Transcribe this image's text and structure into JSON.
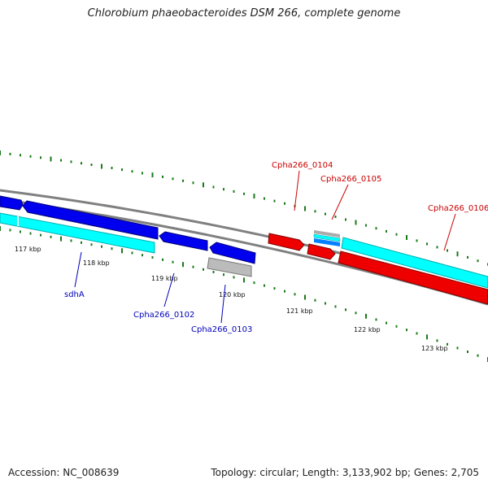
{
  "title": "Chlorobium phaeobacteroides DSM 266, complete genome",
  "footer": {
    "accession": "Accession: NC_008639",
    "summary": "Topology: circular; Length: 3,133,902 bp; Genes: 2,705"
  },
  "colors": {
    "forward_cds": "#0000ee",
    "reverse_cds": "#ee0000",
    "rna": "#aaaaaa",
    "cyan_track": "#00ffff",
    "backbone": "#808080",
    "tick": "#1a7a1a",
    "label_forward": "#0000bb",
    "label_reverse": "#cc0000"
  },
  "scale_labels": [
    "117 kbp",
    "118 kbp",
    "119 kbp",
    "120 kbp",
    "121 kbp",
    "122 kbp",
    "123 kbp"
  ],
  "gene_labels": {
    "forward": [
      "sdhA",
      "Cpha266_0102",
      "Cpha266_0103"
    ],
    "reverse": [
      "Cpha266_0104",
      "Cpha266_0105",
      "Cpha266_0106"
    ]
  }
}
